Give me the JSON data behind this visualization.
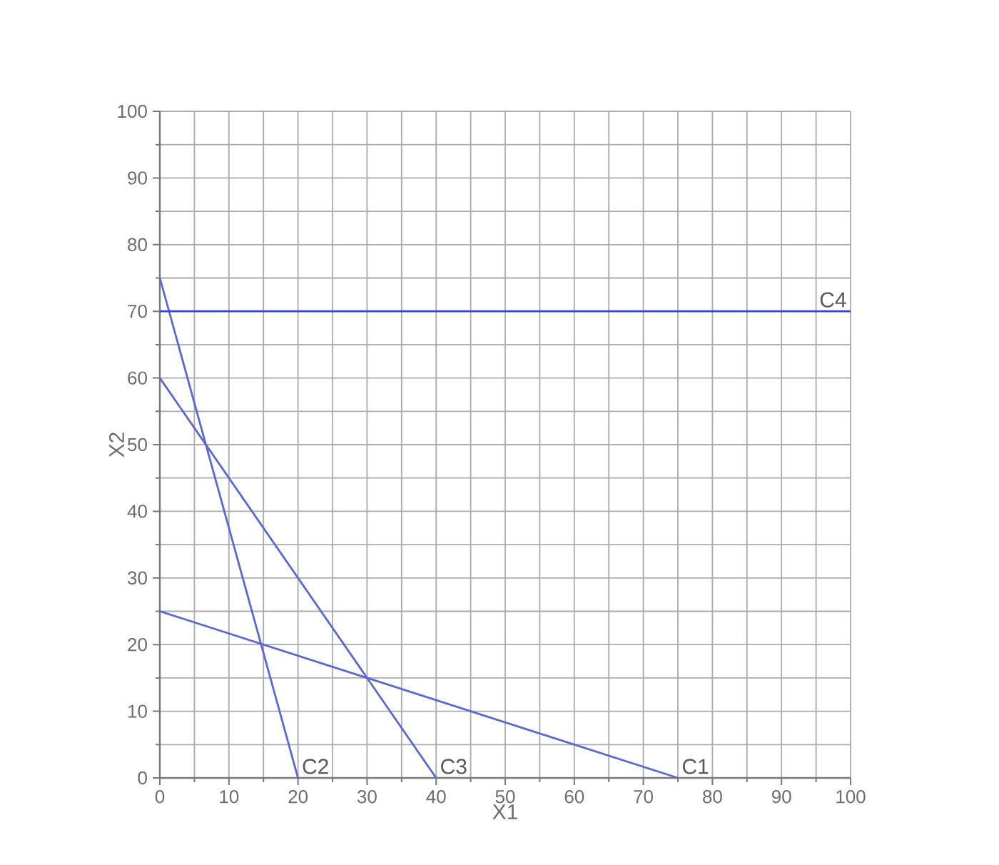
{
  "chart_data": {
    "type": "line",
    "xlabel": "X1",
    "ylabel": "X2",
    "xlim": [
      0,
      100
    ],
    "ylim": [
      0,
      100
    ],
    "xticks": [
      0,
      10,
      20,
      30,
      40,
      50,
      60,
      70,
      80,
      90,
      100
    ],
    "yticks": [
      0,
      10,
      20,
      30,
      40,
      50,
      60,
      70,
      80,
      90,
      100
    ],
    "grid": true,
    "series": [
      {
        "name": "C1",
        "color": "#5a68d6",
        "x": [
          0,
          75
        ],
        "values": [
          25,
          0
        ]
      },
      {
        "name": "C2",
        "color": "#5a68d6",
        "x": [
          0,
          20
        ],
        "values": [
          75,
          0
        ]
      },
      {
        "name": "C3",
        "color": "#5a68d6",
        "x": [
          0,
          40
        ],
        "values": [
          60,
          0
        ]
      },
      {
        "name": "C4",
        "color": "#3447d2",
        "x": [
          0,
          100
        ],
        "values": [
          70,
          70
        ]
      }
    ]
  }
}
